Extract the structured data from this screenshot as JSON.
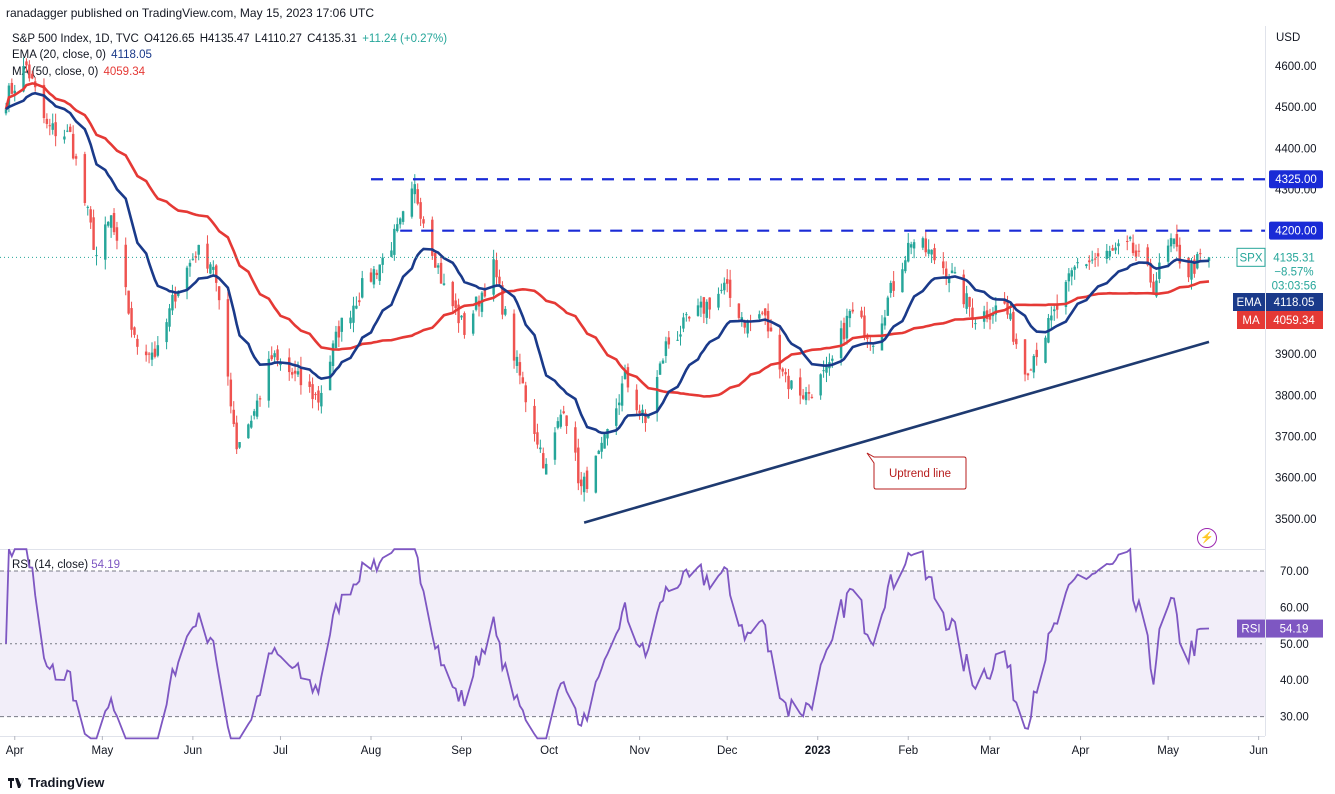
{
  "publisher": "ranadagger published on TradingView.com, May 15, 2023 17:06 UTC",
  "legend": {
    "symbol": "S&P 500 Index, 1D, TVC",
    "open": "O4126.65",
    "high": "H4135.47",
    "low": "L4110.27",
    "close": "C4135.31",
    "change": "+11.24 (+0.27%)",
    "ema_label": "EMA (20, close, 0)",
    "ema_value": "4118.05",
    "ma_label": "MA (50, close, 0)",
    "ma_value": "4059.34"
  },
  "rsi_legend": {
    "label": "RSI (14, close)",
    "value": "54.19"
  },
  "currency": "USD",
  "footer": {
    "brand": "TradingView"
  },
  "colors": {
    "up": "#26a69a",
    "down": "#ef5350",
    "ema": "#1a3a8a",
    "ma": "#e53935",
    "rsi": "#7e57c2",
    "level": "#1a2bd6",
    "trend": "#1e3a70"
  },
  "chart_data": [
    {
      "type": "candlestick",
      "title": "S&P 500 Index, 1D, TVC",
      "ylim": [
        3440,
        4680
      ],
      "yticks": [
        3500,
        3600,
        3700,
        3800,
        3900,
        4000,
        4100,
        4200,
        4300,
        4400,
        4500,
        4600
      ],
      "ytick_labels": [
        "3500.00",
        "3600.00",
        "3700.00",
        "3800.00",
        "3900.00",
        "4000.00",
        "4100.00",
        "4200.00",
        "4300.00",
        "4400.00",
        "4500.00",
        "4600.00"
      ],
      "xticks": [
        "Apr",
        "May",
        "Jun",
        "Jul",
        "Aug",
        "Sep",
        "Oct",
        "Nov",
        "Dec",
        "2023",
        "Feb",
        "Mar",
        "Apr",
        "May",
        "Jun"
      ],
      "trend_anchor_dates": [
        "2022-03-29",
        "2023-06-23"
      ],
      "price_path": {
        "dates": [
          "2022-03-29",
          "2022-04-05",
          "2022-04-12",
          "2022-04-20",
          "2022-04-29",
          "2022-05-04",
          "2022-05-12",
          "2022-05-20",
          "2022-05-26",
          "2022-06-02",
          "2022-06-08",
          "2022-06-16",
          "2022-06-22",
          "2022-06-28",
          "2022-07-05",
          "2022-07-14",
          "2022-07-21",
          "2022-07-29",
          "2022-08-05",
          "2022-08-11",
          "2022-08-16",
          "2022-08-22",
          "2022-08-26",
          "2022-09-02",
          "2022-09-12",
          "2022-09-20",
          "2022-09-30",
          "2022-10-06",
          "2022-10-12",
          "2022-10-19",
          "2022-10-27",
          "2022-11-03",
          "2022-11-10",
          "2022-11-18",
          "2022-11-30",
          "2022-12-08",
          "2022-12-13",
          "2022-12-22",
          "2022-12-28",
          "2023-01-05",
          "2023-01-12",
          "2023-01-20",
          "2023-02-02",
          "2023-02-09",
          "2023-02-15",
          "2023-02-24",
          "2023-03-06",
          "2023-03-13",
          "2023-03-22",
          "2023-03-31",
          "2023-04-10",
          "2023-04-18",
          "2023-04-26",
          "2023-05-02",
          "2023-05-08",
          "2023-05-12"
        ],
        "values": [
          4520,
          4600,
          4450,
          4430,
          4140,
          4230,
          3930,
          3900,
          4050,
          4150,
          4120,
          3680,
          3760,
          3890,
          3850,
          3790,
          3960,
          4060,
          4130,
          4210,
          4300,
          4160,
          4060,
          3960,
          4110,
          3870,
          3620,
          3780,
          3570,
          3660,
          3840,
          3730,
          3920,
          3980,
          4060,
          3970,
          4000,
          3830,
          3800,
          3860,
          4000,
          3940,
          4180,
          4140,
          4100,
          3990,
          4020,
          3860,
          3980,
          4120,
          4140,
          4160,
          4070,
          4170,
          4100,
          4130
        ]
      },
      "last_candle": {
        "open": 4126.65,
        "high": 4135.47,
        "low": 4110.27,
        "close": 4135.31
      },
      "levels": [
        {
          "value": 4325.0,
          "label": "4325.00",
          "start": "2022-08-01"
        },
        {
          "value": 4200.0,
          "label": "4200.00",
          "start": "2022-08-11"
        }
      ],
      "trendline": {
        "label": "Uptrend line",
        "from": {
          "date": "2022-10-13",
          "value": 3491
        },
        "to": {
          "date": "2023-05-15",
          "value": 3930
        }
      },
      "series_tags": [
        {
          "name": "SPX",
          "value": "4135.31",
          "sub1": "−8.57%",
          "sub2": "03:03:56"
        },
        {
          "name": "EMA",
          "value": "4118.05"
        },
        {
          "name": "MA",
          "value": "4059.34"
        }
      ]
    },
    {
      "type": "line",
      "title": "RSI (14, close)",
      "ylim": [
        24,
        76
      ],
      "yticks": [
        30,
        40,
        50,
        60,
        70
      ],
      "ytick_labels": [
        "30.00",
        "40.00",
        "50.00",
        "60.00",
        "70.00"
      ],
      "band": [
        30,
        70
      ],
      "last": {
        "name": "RSI",
        "value": "54.19"
      }
    }
  ]
}
